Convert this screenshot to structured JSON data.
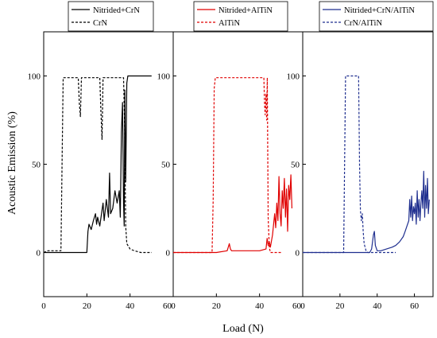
{
  "figure": {
    "ylabel": "Acoustic Emission  (%)",
    "xlabel": "Load (N)"
  },
  "chart_data": [
    {
      "type": "line",
      "xlabel": "Load (N)",
      "ylabel": "Acoustic Emission  (%)",
      "xlim": [
        0,
        60
      ],
      "ylim": [
        -25,
        125
      ],
      "xticks": [
        0,
        20,
        40,
        60
      ],
      "yticks": [
        0,
        50,
        100
      ],
      "legend_position": "top",
      "series": [
        {
          "name": "Nitrided+CrN",
          "color": "#000000",
          "dash": "solid",
          "x": [
            0,
            5,
            10,
            15,
            20,
            20.5,
            21,
            22,
            23,
            24,
            24.5,
            25,
            26,
            27,
            27.5,
            28,
            29,
            30,
            30.5,
            31,
            32,
            33,
            34,
            35,
            35.5,
            36,
            36.5,
            37,
            37.3,
            37.6,
            38,
            38.5,
            39,
            40,
            42,
            45,
            50
          ],
          "y": [
            0,
            0,
            0,
            0,
            0,
            12,
            16,
            13,
            18,
            22,
            16,
            20,
            15,
            24,
            28,
            18,
            30,
            20,
            45,
            22,
            25,
            35,
            28,
            35,
            20,
            68,
            85,
            28,
            15,
            92,
            40,
            96,
            100,
            100,
            100,
            100,
            100
          ]
        },
        {
          "name": "CrN",
          "color": "#000000",
          "dash": "dashed",
          "x": [
            0,
            2,
            5,
            8,
            8.5,
            9,
            10,
            16,
            16.5,
            17,
            17.5,
            20,
            26,
            26.5,
            27,
            27.5,
            30,
            36,
            37,
            37.5,
            38,
            38.5,
            40,
            42,
            45,
            50
          ],
          "y": [
            0,
            1,
            1,
            1,
            50,
            99,
            99,
            99,
            85,
            77,
            99,
            99,
            99,
            80,
            64,
            99,
            99,
            99,
            99,
            70,
            15,
            5,
            2,
            1,
            0,
            0
          ]
        }
      ]
    },
    {
      "type": "line",
      "xlabel": "Load (N)",
      "ylabel": "Acoustic Emission  (%)",
      "xlim": [
        0,
        60
      ],
      "ylim": [
        -25,
        125
      ],
      "xticks": [
        0,
        20,
        40,
        60
      ],
      "yticks": [
        0,
        50,
        100
      ],
      "legend_position": "top",
      "series": [
        {
          "name": "Nitrided+AlTiN",
          "color": "#e00000",
          "dash": "solid",
          "x": [
            0,
            10,
            20,
            25,
            25.5,
            26,
            26.5,
            27,
            30,
            35,
            40,
            43,
            43.5,
            44,
            44.5,
            45,
            46,
            47,
            47.5,
            48,
            48.5,
            49,
            49.5,
            50,
            50.5,
            51,
            51.5,
            52,
            52.5,
            53,
            53.5,
            54,
            54.5,
            55
          ],
          "y": [
            0,
            0,
            0,
            1,
            3,
            5,
            2,
            1,
            1,
            1,
            1,
            2,
            8,
            4,
            6,
            3,
            10,
            22,
            14,
            28,
            18,
            43,
            22,
            15,
            35,
            25,
            42,
            20,
            36,
            12,
            38,
            30,
            44,
            25
          ]
        },
        {
          "name": "AlTiN",
          "color": "#e00000",
          "dash": "dashed",
          "x": [
            0,
            5,
            10,
            17,
            18,
            18.5,
            19,
            19.5,
            20,
            25,
            30,
            35,
            40,
            42,
            42.3,
            42.6,
            43,
            43.3,
            43.6,
            44,
            44.5,
            45,
            50
          ],
          "y": [
            0,
            0,
            0,
            0,
            0,
            30,
            93,
            99,
            99,
            99,
            99,
            99,
            99,
            99,
            85,
            78,
            90,
            75,
            99,
            20,
            3,
            0,
            0
          ]
        }
      ]
    },
    {
      "type": "line",
      "xlabel": "Load (N)",
      "ylabel": "Acoustic Emission  (%)",
      "xlim": [
        0,
        70
      ],
      "ylim": [
        -25,
        125
      ],
      "xticks": [
        0,
        20,
        40,
        60
      ],
      "yticks": [
        0,
        50,
        100
      ],
      "legend_position": "top",
      "series": [
        {
          "name": "Nitrided+CrN/AlTiN",
          "color": "#1f2f8f",
          "dash": "solid",
          "x": [
            0,
            10,
            20,
            30,
            36,
            37,
            38,
            38.5,
            39,
            40,
            42,
            45,
            48,
            50,
            52,
            54,
            55,
            56,
            57,
            57.5,
            58,
            58.5,
            59,
            59.5,
            60,
            60.5,
            61,
            61.5,
            62,
            62.5,
            63,
            63.5,
            64,
            64.5,
            65,
            65.5,
            66,
            66.5,
            67,
            67.5,
            68
          ],
          "y": [
            0,
            0,
            0,
            0,
            0,
            2,
            10,
            12,
            4,
            1,
            1,
            2,
            3,
            4,
            6,
            9,
            12,
            15,
            18,
            30,
            20,
            32,
            18,
            26,
            22,
            28,
            16,
            35,
            20,
            30,
            18,
            28,
            35,
            25,
            46,
            20,
            38,
            25,
            42,
            22,
            30
          ]
        },
        {
          "name": "CrN/AlTiN",
          "color": "#1f2f8f",
          "dash": "dashed",
          "x": [
            0,
            10,
            20,
            22,
            22.5,
            23,
            24,
            28,
            30,
            30.5,
            31,
            31.5,
            32,
            32.5,
            33,
            34,
            35,
            40,
            50
          ],
          "y": [
            0,
            0,
            0,
            0,
            50,
            100,
            100,
            100,
            100,
            50,
            24,
            18,
            22,
            12,
            5,
            1,
            0,
            0,
            0
          ]
        }
      ]
    }
  ]
}
